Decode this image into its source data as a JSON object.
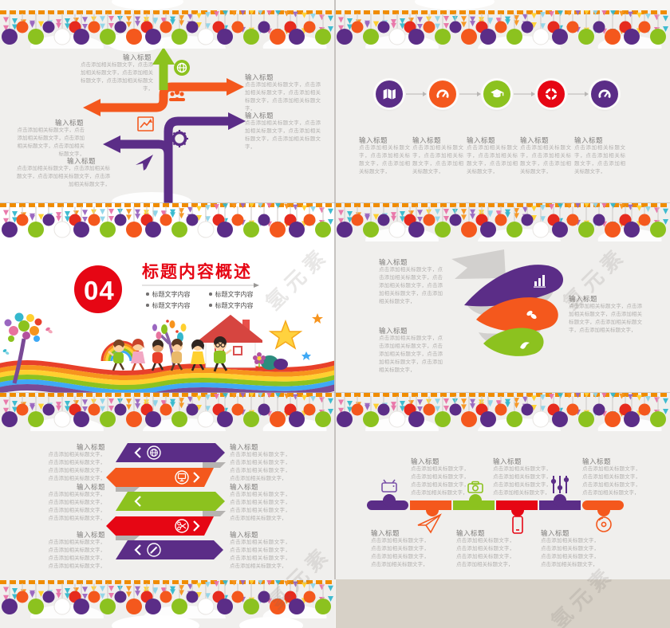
{
  "watermark": "氢元素",
  "placeholders": {
    "item_title": "输入标题",
    "body_short": "点击添加相关标题文字，点击添加相关标题文字，点击添加相关标题文字，",
    "body": "点击添加相关标题文字，点击添加相关标题文字，点击添加相关标题文字，点击添加相关标题文字，",
    "body_long": "点击添加相关标题文字，点击添加相关标题文字，点击添加相关标题文字，点击添加相关标题文字，点击添加相关标题文字，"
  },
  "section_slide": {
    "number": "04",
    "title": "标题内容概述",
    "bullets": [
      "标题文字内容",
      "标题文字内容",
      "标题文字内容",
      "标题文字内容"
    ]
  },
  "slides": {
    "tree_diagram": {
      "icons": [
        "globe-icon",
        "team-icon",
        "line-chart-icon",
        "ship-wheel-icon",
        "paper-plane-icon"
      ]
    },
    "process_steps": {
      "icons": [
        "open-map-icon",
        "gauge-icon",
        "graduation-cap-icon",
        "life-ring-icon",
        "gauge-icon"
      ]
    },
    "spiral_ribbon": {
      "icons": [
        "bar-chart-icon",
        "butterfly-icon",
        "bird-icon"
      ]
    },
    "zigzag_banners": {
      "icons": [
        "globe-icon",
        "monitor-icon",
        "scissors-icon",
        "pencil-icon"
      ]
    },
    "timeline": {
      "icons": [
        "tv-icon",
        "paper-plane-icon",
        "camera-icon",
        "smartphone-icon",
        "sliders-icon",
        "cd-icon"
      ]
    }
  },
  "colors": {
    "purple": "#5b2d87",
    "green": "#8cc21f",
    "orange": "#f4581d",
    "red": "#e60614",
    "accent_scallop": "#f08c00",
    "tan": "#d7d1c7"
  }
}
